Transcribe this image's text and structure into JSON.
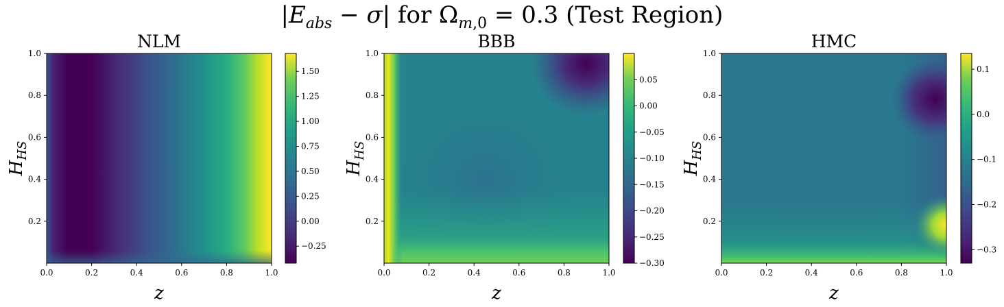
{
  "suptitle": "|E_abs − σ| for Ω_{m,0} = 0.3 (Test Region)",
  "chart_data": [
    {
      "type": "heatmap",
      "title": "NLM",
      "xlabel": "z",
      "ylabel": "H_HS",
      "xlim": [
        0.0,
        1.0
      ],
      "ylim": [
        0.0,
        1.0
      ],
      "xticks": [
        "0.0",
        "0.2",
        "0.4",
        "0.6",
        "0.8",
        "1.0"
      ],
      "yticks": [
        "0.2",
        "0.4",
        "0.6",
        "0.8",
        "1.0"
      ],
      "colorbar_range": [
        -0.42,
        1.68
      ],
      "colorbar_ticks": [
        "−0.25",
        "0.00",
        "0.25",
        "0.50",
        "0.75",
        "1.00",
        "1.25",
        "1.50"
      ],
      "colormap": "viridis",
      "description_values": {
        "min_near_z": 0.15,
        "value_at_z1": 1.68
      }
    },
    {
      "type": "heatmap",
      "title": "BBB",
      "xlabel": "z",
      "ylabel": "H_HS",
      "xlim": [
        0.0,
        1.0
      ],
      "ylim": [
        0.0,
        1.0
      ],
      "xticks": [
        "0.0",
        "0.2",
        "0.4",
        "0.6",
        "0.8",
        "1.0"
      ],
      "yticks": [
        "0.2",
        "0.4",
        "0.6",
        "0.8",
        "1.0"
      ],
      "colorbar_range": [
        -0.3,
        0.1
      ],
      "colorbar_ticks": [
        "−0.30",
        "−0.25",
        "−0.20",
        "−0.15",
        "−0.10",
        "−0.05",
        "0.00",
        "0.05"
      ],
      "colormap": "viridis"
    },
    {
      "type": "heatmap",
      "title": "HMC",
      "xlabel": "z",
      "ylabel": "H_HS",
      "xlim": [
        0.0,
        1.0
      ],
      "ylim": [
        0.0,
        1.0
      ],
      "xticks": [
        "0.0",
        "0.2",
        "0.4",
        "0.6",
        "0.8",
        "1.0"
      ],
      "yticks": [
        "0.2",
        "0.4",
        "0.6",
        "0.8",
        "1.0"
      ],
      "colorbar_range": [
        -0.33,
        0.135
      ],
      "colorbar_ticks": [
        "−0.3",
        "−0.2",
        "−0.1",
        "0.0",
        "0.1"
      ],
      "colormap": "viridis"
    }
  ]
}
